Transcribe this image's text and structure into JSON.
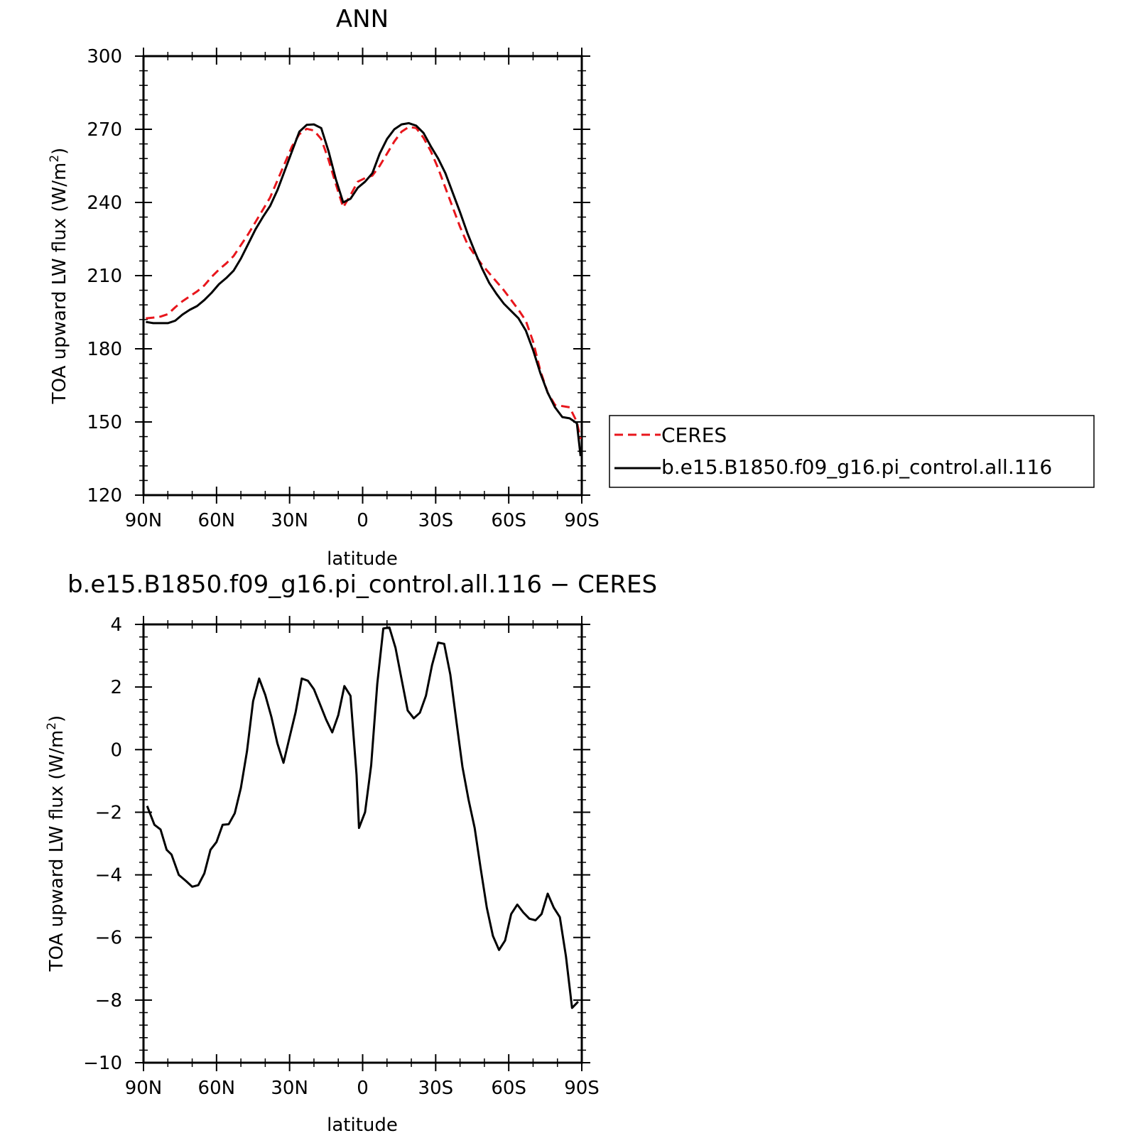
{
  "chart_data": [
    {
      "type": "line",
      "title": "ANN",
      "xlabel": "latitude",
      "ylabel": "TOA upward LW flux (W/m",
      "ylabel_sup": "2",
      "ylabel_end": ")",
      "xlim": [
        90,
        -90
      ],
      "ylim": [
        120,
        300
      ],
      "xticks": [
        90,
        60,
        30,
        0,
        -30,
        -60,
        -90
      ],
      "xtick_labels": [
        "90N",
        "60N",
        "30N",
        "0",
        "30S",
        "60S",
        "90S"
      ],
      "yticks": [
        120,
        150,
        180,
        210,
        240,
        270,
        300
      ],
      "ytick_labels": [
        "120",
        "150",
        "180",
        "210",
        "240",
        "270",
        "300"
      ],
      "legend": "right",
      "series": [
        {
          "name": "CERES",
          "color": "#e8161c",
          "dash": "dashed",
          "x": [
            89,
            86,
            83,
            80,
            77,
            74,
            71,
            68,
            65,
            62,
            59,
            56,
            53,
            50,
            47,
            44,
            41,
            38,
            35,
            32,
            29,
            26,
            23,
            20,
            17,
            14,
            11,
            8,
            5,
            2,
            -1,
            -4,
            -7,
            -10,
            -13,
            -16,
            -19,
            -22,
            -25,
            -28,
            -31,
            -34,
            -37,
            -40,
            -43,
            -46,
            -49,
            -52,
            -55,
            -58,
            -61,
            -64,
            -67,
            -70,
            -73,
            -76,
            -79,
            -82,
            -85,
            -88,
            -89.5
          ],
          "values": [
            192.5,
            192.8,
            193.2,
            194.2,
            197,
            199.5,
            201.5,
            203.5,
            206,
            209.5,
            212.5,
            215,
            218,
            222.5,
            227,
            232,
            237,
            242,
            249,
            256,
            263,
            268,
            270.2,
            269.5,
            266,
            257.5,
            247.5,
            238,
            243,
            248.5,
            250,
            251,
            255,
            260,
            265,
            269,
            271,
            270.5,
            266.5,
            261,
            254,
            246,
            238,
            230,
            223,
            218.5,
            214.5,
            211,
            207.5,
            204,
            200,
            196,
            191.5,
            183,
            171,
            162,
            157,
            156.5,
            156,
            150,
            143
          ]
        },
        {
          "name": "b.e15.B1850.f09_g16.pi_control.all.116",
          "color": "#000000",
          "dash": "solid",
          "x": [
            89,
            86,
            83,
            80,
            77,
            74,
            71,
            68,
            65,
            62,
            59,
            56,
            53,
            50,
            47,
            44,
            41,
            38,
            35,
            32,
            29,
            26,
            23,
            20,
            17,
            14,
            11,
            8,
            5,
            2,
            -1,
            -4,
            -7,
            -10,
            -13,
            -16,
            -19,
            -22,
            -25,
            -28,
            -31,
            -34,
            -37,
            -40,
            -43,
            -46,
            -49,
            -52,
            -55,
            -58,
            -61,
            -64,
            -67,
            -70,
            -73,
            -76,
            -79,
            -82,
            -85,
            -88,
            -89.5
          ],
          "values": [
            191,
            190.5,
            190.5,
            190.5,
            191.5,
            194,
            196,
            197.5,
            200,
            203,
            206.5,
            209,
            212,
            217,
            223,
            229,
            234,
            238.5,
            245,
            253,
            261,
            269,
            271.8,
            272,
            270.5,
            261,
            249.5,
            240,
            241.5,
            246,
            248.5,
            252,
            260,
            266,
            270,
            272,
            272.5,
            271.5,
            268.5,
            263,
            258,
            252,
            244,
            236,
            227.5,
            220,
            213,
            207,
            202.5,
            198.5,
            195.5,
            192.5,
            187.5,
            179.5,
            170,
            162,
            156,
            152,
            151.5,
            149.5,
            136
          ]
        }
      ]
    },
    {
      "type": "line",
      "title": "b.e15.B1850.f09_g16.pi_control.all.116 − CERES",
      "xlabel": "latitude",
      "ylabel": "TOA upward LW flux (W/m",
      "ylabel_sup": "2",
      "ylabel_end": ")",
      "xlim": [
        90,
        -90
      ],
      "ylim": [
        -10,
        4
      ],
      "xticks": [
        90,
        60,
        30,
        0,
        -30,
        -60,
        -90
      ],
      "xtick_labels": [
        "90N",
        "60N",
        "30N",
        "0",
        "30S",
        "60S",
        "90S"
      ],
      "yticks": [
        -10,
        -8,
        -6,
        -4,
        -2,
        0,
        2,
        4
      ],
      "ytick_labels": [
        "−10",
        "−8",
        "−6",
        "−4",
        "−2",
        "0",
        "2",
        "4"
      ],
      "series": [
        {
          "color": "#000000",
          "dash": "solid",
          "x": [
            88.5,
            85.5,
            83,
            80.5,
            78.5,
            75.5,
            72.5,
            70,
            67.5,
            65,
            62.5,
            60,
            57.5,
            55,
            52.5,
            50,
            47.5,
            45,
            42.5,
            40,
            37.5,
            35,
            32.5,
            30,
            27.5,
            25,
            22.5,
            20,
            17.5,
            15,
            12.5,
            10,
            7.5,
            5,
            2.5,
            1.5,
            -1,
            -3.5,
            -6,
            -8.5,
            -11,
            -13.5,
            -16,
            -18.5,
            -21,
            -23.5,
            -26,
            -28.5,
            -31,
            -33.5,
            -36,
            -38.5,
            -41,
            -43.5,
            -46,
            -48.5,
            -51,
            -53.5,
            -56,
            -58.5,
            -61,
            -63.5,
            -66,
            -68.5,
            -71,
            -73.5,
            -76,
            -78.5,
            -81,
            -83.5,
            -86,
            -88.5
          ],
          "values": [
            -1.8,
            -2.4,
            -2.55,
            -3.2,
            -3.35,
            -4,
            -4.2,
            -4.38,
            -4.33,
            -3.95,
            -3.2,
            -2.95,
            -2.4,
            -2.38,
            -2.03,
            -1.22,
            -0.05,
            1.55,
            2.27,
            1.75,
            1.05,
            0.2,
            -0.42,
            0.4,
            1.2,
            2.27,
            2.2,
            1.93,
            1.45,
            0.96,
            0.55,
            1.1,
            2.03,
            1.72,
            -0.8,
            -2.5,
            -2,
            -0.5,
            2.1,
            3.87,
            3.9,
            3.25,
            2.25,
            1.25,
            1,
            1.18,
            1.72,
            2.7,
            3.42,
            3.38,
            2.4,
            0.9,
            -0.55,
            -1.6,
            -2.5,
            -3.8,
            -5.05,
            -5.95,
            -6.4,
            -6.1,
            -5.25,
            -4.95,
            -5.2,
            -5.4,
            -5.45,
            -5.25,
            -4.6,
            -5.05,
            -5.35,
            -6.6,
            -8.25,
            -8.05
          ]
        }
      ]
    }
  ]
}
